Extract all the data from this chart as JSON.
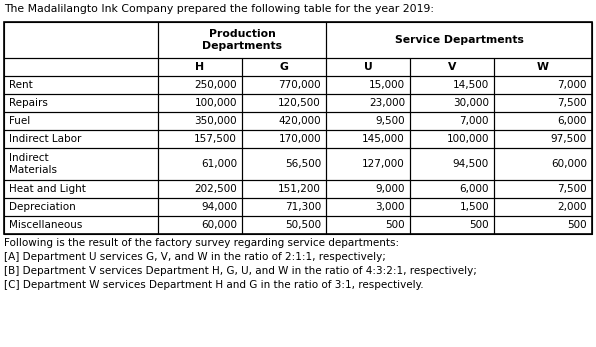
{
  "title": "The Madalilangto Ink Company prepared the following table for the year 2019:",
  "header2": [
    "H",
    "G",
    "U",
    "V",
    "W"
  ],
  "row_labels": [
    "Rent",
    "Repairs",
    "Fuel",
    "Indirect Labor",
    "Indirect\nMaterials",
    "Heat and Light",
    "Depreciation",
    "Miscellaneous"
  ],
  "data": [
    [
      "250,000",
      "770,000",
      "15,000",
      "14,500",
      "7,000"
    ],
    [
      "100,000",
      "120,500",
      "23,000",
      "30,000",
      "7,500"
    ],
    [
      "350,000",
      "420,000",
      "9,500",
      "7,000",
      "6,000"
    ],
    [
      "157,500",
      "170,000",
      "145,000",
      "100,000",
      "97,500"
    ],
    [
      "61,000",
      "56,500",
      "127,000",
      "94,500",
      "60,000"
    ],
    [
      "202,500",
      "151,200",
      "9,000",
      "6,000",
      "7,500"
    ],
    [
      "94,000",
      "71,300",
      "3,000",
      "1,500",
      "2,000"
    ],
    [
      "60,000",
      "50,500",
      "500",
      "500",
      "500"
    ]
  ],
  "footer_lines": [
    "Following is the result of the factory survey regarding service departments:",
    "[A] Department U services G, V, and W in the ratio of 2:1:1, respectively;",
    "[B] Department V services Department H, G, U, and W in the ratio of 4:3:2:1, respectively;",
    "[C] Department W services Department H and G in the ratio of 3:1, respectively."
  ],
  "background_color": "#ffffff",
  "font_size": 7.5,
  "header_font_size": 7.8,
  "title_font_size": 7.8,
  "footer_font_size": 7.5
}
